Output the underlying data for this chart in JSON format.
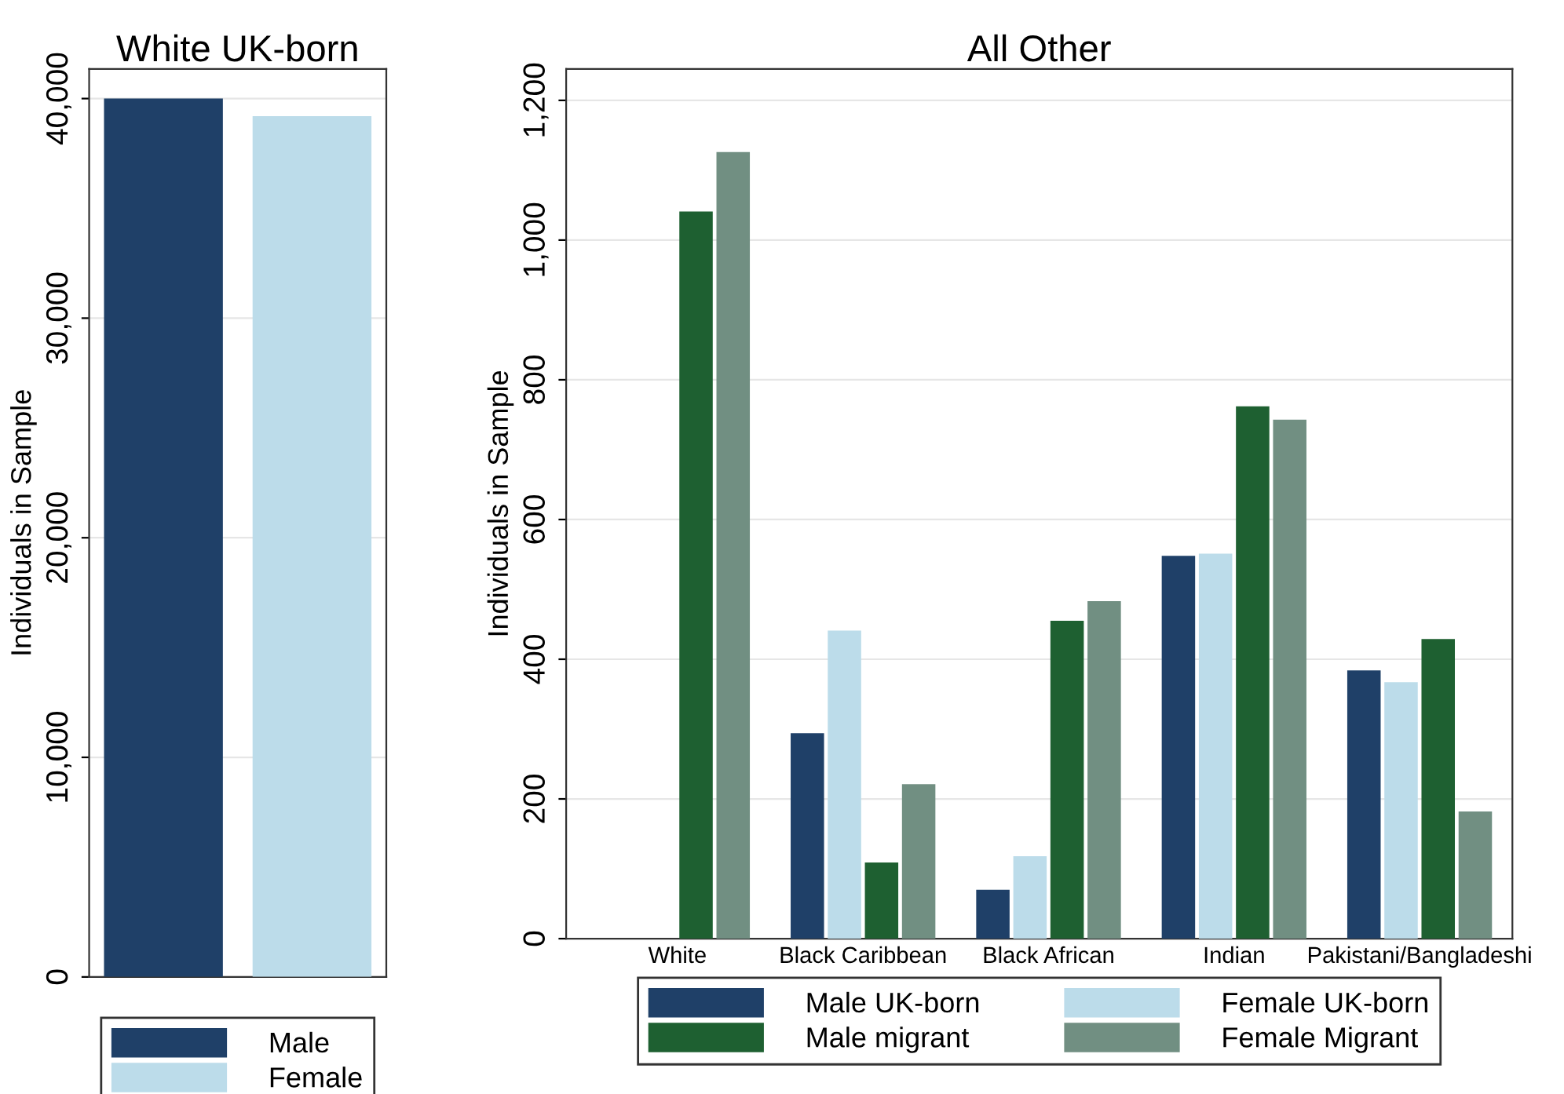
{
  "chart_data": [
    {
      "type": "bar",
      "title": "White UK-born",
      "ylabel": "Individuals in Sample",
      "categories": [
        null
      ],
      "series": [
        {
          "name": "Male",
          "color": "#1f4068",
          "values": [
            40000
          ]
        },
        {
          "name": "Female",
          "color": "#bcdcea",
          "values": [
            39200
          ]
        }
      ],
      "ylim": [
        0,
        41350
      ],
      "yticks": [
        {
          "value": 0,
          "label": "0"
        },
        {
          "value": 10000,
          "label": "10,000"
        },
        {
          "value": 20000,
          "label": "20,000"
        },
        {
          "value": 30000,
          "label": "30,000"
        },
        {
          "value": 40000,
          "label": "40,000"
        }
      ],
      "grid": "y",
      "legend": "bottom"
    },
    {
      "type": "bar",
      "title": "All Other",
      "ylabel": "Individuals in Sample",
      "categories": [
        "White",
        "Black Caribbean",
        "Black African",
        "Indian",
        "Pakistani/Bangladeshi"
      ],
      "series": [
        {
          "name": "Male UK-born",
          "color": "#1f4068",
          "values": [
            null,
            294,
            70,
            548,
            384
          ]
        },
        {
          "name": "Female UK-born",
          "color": "#bcdcea",
          "values": [
            null,
            441,
            118,
            551,
            367
          ]
        },
        {
          "name": "Male migrant",
          "color": "#1e6031",
          "values": [
            1041,
            109,
            455,
            762,
            429
          ]
        },
        {
          "name": "Female Migrant",
          "color": "#718f82",
          "values": [
            1126,
            221,
            483,
            743,
            182
          ]
        }
      ],
      "ylim": [
        0,
        1245
      ],
      "yticks": [
        0,
        200,
        400,
        600,
        800,
        {
          "value": 1000,
          "label": "1,000"
        },
        {
          "value": 1200,
          "label": "1,200"
        }
      ],
      "grid": "y",
      "legend": "bottom"
    }
  ]
}
